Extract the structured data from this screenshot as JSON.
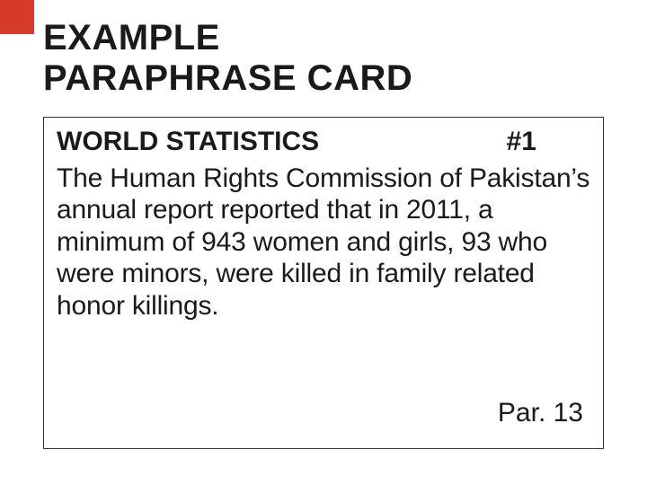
{
  "title_line1": "EXAMPLE",
  "title_line2": "PARAPHRASE CARD",
  "card": {
    "heading": "WORLD STATISTICS",
    "number": "#1",
    "body": "The Human Rights Commission of Pakistan’s annual report reported that in 2011, a minimum of 943 women and girls, 93 who were minors, were killed in family related honor killings.",
    "footer": "Par. 13"
  },
  "colors": {
    "accent": "#d63a2a",
    "text": "#1a1a1a",
    "background": "#ffffff",
    "border": "#333333"
  }
}
